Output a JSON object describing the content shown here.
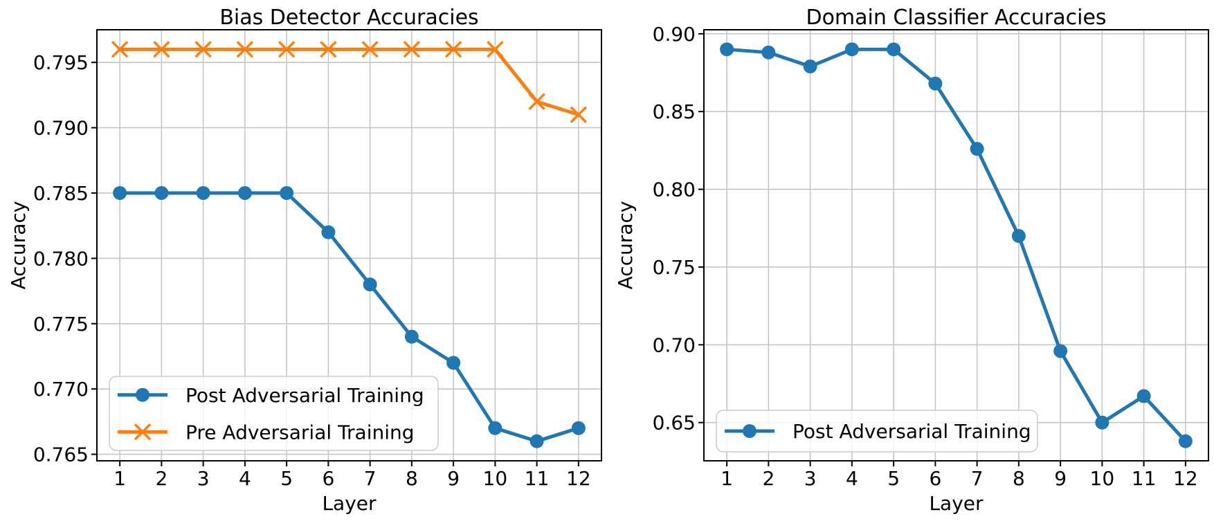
{
  "figure": {
    "background": "#ffffff",
    "accent_blue": "#1f77b4",
    "accent_orange": "#ff7f0e"
  },
  "chart_data": [
    {
      "type": "line",
      "title": "Bias Detector Accuracies",
      "xlabel": "Layer",
      "ylabel": "Accuracy",
      "x": [
        1,
        2,
        3,
        4,
        5,
        6,
        7,
        8,
        9,
        10,
        11,
        12
      ],
      "xtick_labels": [
        "1",
        "2",
        "3",
        "4",
        "5",
        "6",
        "7",
        "8",
        "9",
        "10",
        "11",
        "12"
      ],
      "ylim": [
        0.7645,
        0.7975
      ],
      "yticks": [
        0.765,
        0.77,
        0.775,
        0.78,
        0.785,
        0.79,
        0.795
      ],
      "ytick_labels": [
        "0.765",
        "0.770",
        "0.775",
        "0.780",
        "0.785",
        "0.790",
        "0.795"
      ],
      "grid": true,
      "legend_position": "lower left",
      "series": [
        {
          "name": "Post Adversarial Training",
          "color": "#1f77b4",
          "marker": "circle",
          "values": [
            0.785,
            0.785,
            0.785,
            0.785,
            0.785,
            0.782,
            0.778,
            0.774,
            0.772,
            0.767,
            0.766,
            0.767
          ]
        },
        {
          "name": "Pre Adversarial Training",
          "color": "#ff7f0e",
          "marker": "x",
          "values": [
            0.796,
            0.796,
            0.796,
            0.796,
            0.796,
            0.796,
            0.796,
            0.796,
            0.796,
            0.796,
            0.792,
            0.791
          ]
        }
      ]
    },
    {
      "type": "line",
      "title": "Domain Classifier Accuracies",
      "xlabel": "Layer",
      "ylabel": "Accuracy",
      "x": [
        1,
        2,
        3,
        4,
        5,
        6,
        7,
        8,
        9,
        10,
        11,
        12
      ],
      "xtick_labels": [
        "1",
        "2",
        "3",
        "4",
        "5",
        "6",
        "7",
        "8",
        "9",
        "10",
        "11",
        "12"
      ],
      "ylim": [
        0.6254,
        0.9026
      ],
      "yticks": [
        0.65,
        0.7,
        0.75,
        0.8,
        0.85,
        0.9
      ],
      "ytick_labels": [
        "0.65",
        "0.70",
        "0.75",
        "0.80",
        "0.85",
        "0.90"
      ],
      "grid": true,
      "legend_position": "lower left",
      "series": [
        {
          "name": "Post Adversarial Training",
          "color": "#1f77b4",
          "marker": "circle",
          "values": [
            0.89,
            0.888,
            0.879,
            0.89,
            0.89,
            0.868,
            0.826,
            0.77,
            0.696,
            0.65,
            0.667,
            0.638
          ]
        }
      ]
    }
  ]
}
